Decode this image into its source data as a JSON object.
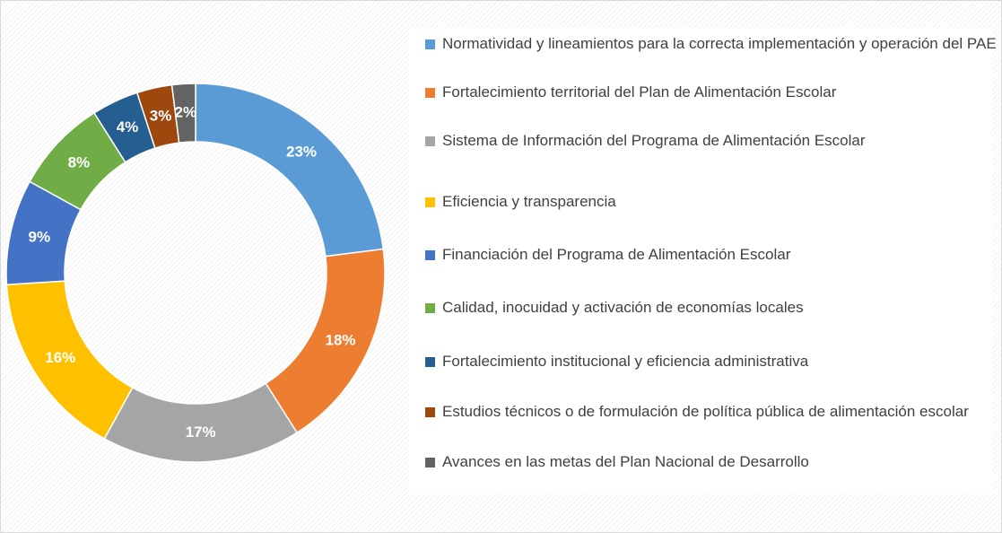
{
  "chart_data": {
    "type": "donut",
    "categories": [
      "Normatividad y lineamientos para la correcta implementación y operación del PAE",
      "Fortalecimiento territorial del Plan de Alimentación Escolar",
      "Sistema de Información del Programa de Alimentación Escolar",
      "Eficiencia y transparencia",
      "Financiación del Programa de Alimentación Escolar",
      "Calidad, inocuidad y activación de economías locales",
      "Fortalecimiento institucional y eficiencia administrativa",
      "Estudios técnicos o de formulación de política pública de alimentación escolar",
      "Avances en las metas del Plan Nacional de Desarrollo"
    ],
    "values": [
      23,
      18,
      17,
      16,
      9,
      8,
      4,
      3,
      2
    ],
    "value_labels": [
      "23%",
      "18%",
      "17%",
      "16%",
      "9%",
      "8%",
      "4%",
      "3%",
      "2%"
    ],
    "colors": [
      "#5b9bd5",
      "#ed7d31",
      "#a5a5a5",
      "#ffc000",
      "#4472c4",
      "#70ad47",
      "#255e91",
      "#9e480e",
      "#636363"
    ],
    "legend": "right"
  }
}
